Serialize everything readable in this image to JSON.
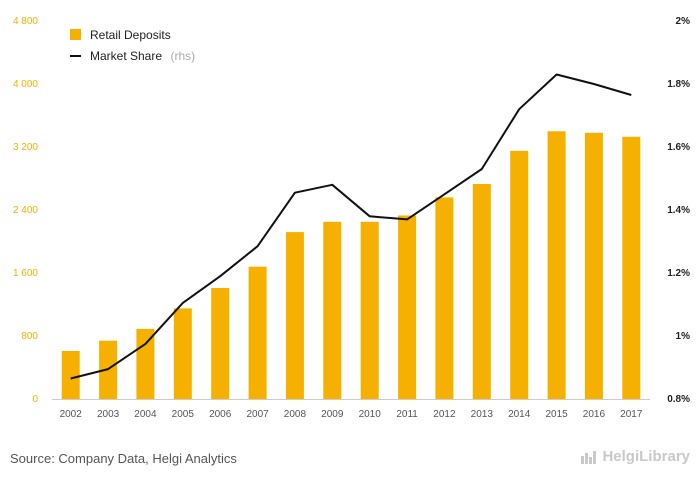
{
  "chart_data": {
    "type": "bar",
    "categories": [
      "2002",
      "2003",
      "2004",
      "2005",
      "2006",
      "2007",
      "2008",
      "2009",
      "2010",
      "2011",
      "2012",
      "2013",
      "2014",
      "2015",
      "2016",
      "2017"
    ],
    "series": [
      {
        "name": "Retail Deposits",
        "type": "bar",
        "axis": "left",
        "values": [
          610,
          740,
          890,
          1150,
          1410,
          1680,
          2120,
          2250,
          2250,
          2330,
          2560,
          2730,
          3150,
          3400,
          3380,
          3330
        ]
      },
      {
        "name": "Market Share",
        "name_suffix": "(rhs)",
        "type": "line",
        "axis": "right",
        "values": [
          0.865,
          0.895,
          0.975,
          1.105,
          1.19,
          1.285,
          1.455,
          1.48,
          1.38,
          1.37,
          1.45,
          1.53,
          1.72,
          1.83,
          1.8,
          1.765
        ]
      }
    ],
    "y_left": {
      "min": 0,
      "max": 4800,
      "ticks": [
        "0",
        "800",
        "1 600",
        "2 400",
        "3 200",
        "4 000",
        "4 800"
      ],
      "tick_values": [
        0,
        800,
        1600,
        2400,
        3200,
        4000,
        4800
      ]
    },
    "y_right": {
      "min": 0.8,
      "max": 2.0,
      "ticks": [
        "0.8%",
        "1%",
        "1.2%",
        "1.4%",
        "1.6%",
        "1.8%",
        "2%"
      ],
      "tick_values": [
        0.8,
        1.0,
        1.2,
        1.4,
        1.6,
        1.8,
        2.0
      ]
    },
    "legend": {
      "position": "top-left"
    },
    "grid": false,
    "colors": {
      "bar": "#f5b000",
      "line": "#111111",
      "left_axis_text": "#f5b000",
      "right_axis_text": "#222222"
    }
  },
  "source": "Source: Company Data, Helgi Analytics",
  "brand": {
    "name": "HelgiLibrary",
    "icon": "bar-chart-icon"
  }
}
